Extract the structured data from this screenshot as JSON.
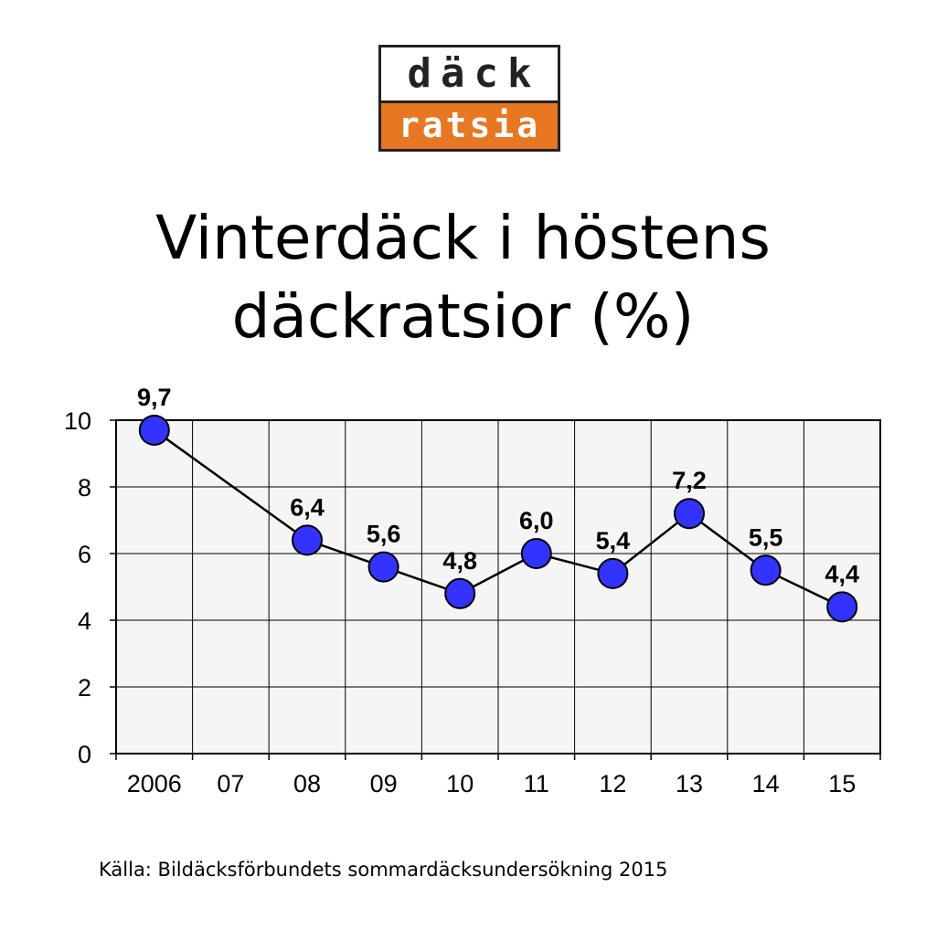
{
  "logo": {
    "line1": "däck",
    "line2": "ratsia",
    "accent_color": "#e87722",
    "border_color": "#222222"
  },
  "title": {
    "line1": "Vinterdäck i höstens",
    "line2": "däckratsior (%)"
  },
  "chart_data": {
    "type": "line",
    "title": "Vinterdäck i höstens däckratsior (%)",
    "xlabel": "",
    "ylabel": "",
    "categories": [
      "2006",
      "07",
      "08",
      "09",
      "10",
      "11",
      "12",
      "13",
      "14",
      "15"
    ],
    "series": [
      {
        "values": [
          9.7,
          null,
          6.4,
          5.6,
          4.8,
          6.0,
          5.4,
          7.2,
          5.5,
          4.4
        ],
        "data_labels": [
          "9,7",
          "",
          "6,4",
          "5,6",
          "4,8",
          "6,0",
          "5,4",
          "7,2",
          "5,5",
          "4,4"
        ]
      }
    ],
    "ylim": [
      0,
      10
    ],
    "yticks": [
      0,
      2,
      4,
      6,
      8,
      10
    ],
    "grid": true,
    "plot_background": "#f5f5f5",
    "marker_color": "#3333ff",
    "line_color": "#000000"
  },
  "source": {
    "text": "Källa: Bildäcksförbundets sommardäcksundersökning 2015"
  }
}
